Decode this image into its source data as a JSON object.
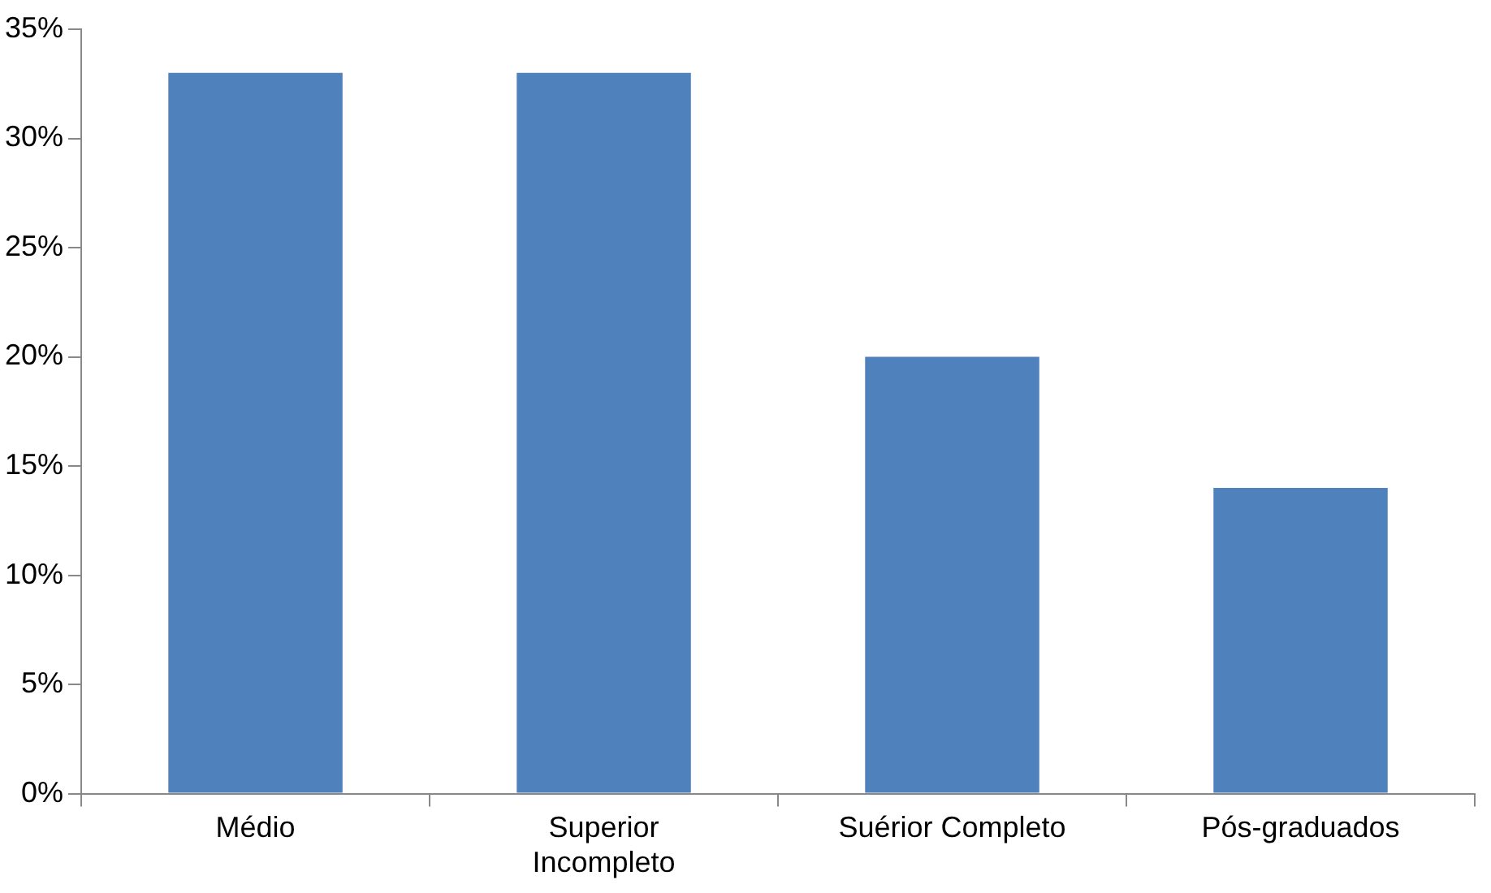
{
  "chart_data": {
    "type": "bar",
    "categories": [
      "Médio",
      "Superior Incompleto",
      "Suérior Completo",
      "Pós-graduados"
    ],
    "values": [
      33,
      33,
      20,
      14
    ],
    "color": "#4f81bd",
    "ylim": [
      0,
      35
    ],
    "yticks": [
      {
        "value": 0,
        "label": "0%"
      },
      {
        "value": 5,
        "label": "5%"
      },
      {
        "value": 10,
        "label": "10%"
      },
      {
        "value": 15,
        "label": "15%"
      },
      {
        "value": 20,
        "label": "20%"
      },
      {
        "value": 25,
        "label": "25%"
      },
      {
        "value": 30,
        "label": "30%"
      },
      {
        "value": 35,
        "label": "35%"
      }
    ],
    "grid": false,
    "legend": false
  }
}
